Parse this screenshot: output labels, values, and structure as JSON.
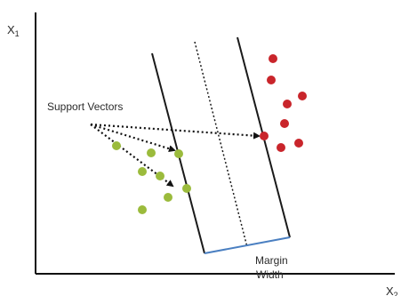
{
  "axes": {
    "y_label": "X",
    "y_label_sub": "1",
    "x_label": "X",
    "x_label_sub": "2"
  },
  "annotations": {
    "support_vectors": "Support Vectors",
    "margin_line1": "Margin",
    "margin_line2": "Width"
  },
  "colors": {
    "green_point": "#9bbb3c",
    "red_point": "#c9252b",
    "boundary_line": "#1a1a1a",
    "margin_bracket": "#4a7fc1",
    "axis": "#111111"
  },
  "points": {
    "class_green_count": 8,
    "class_red_count": 8
  }
}
